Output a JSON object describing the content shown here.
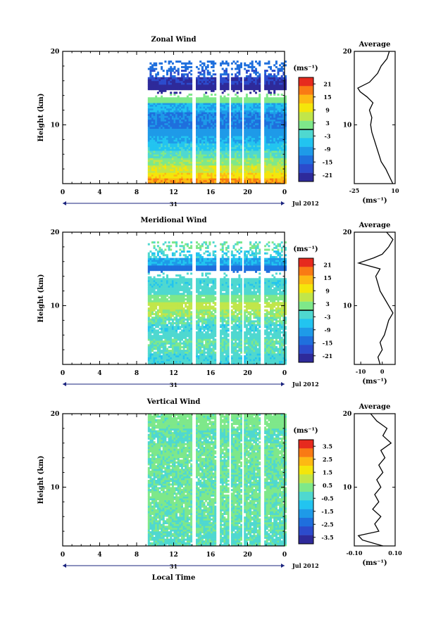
{
  "chart_data": [
    {
      "type": "heatmap",
      "title": "Zonal Wind",
      "ylabel": "Height (km)",
      "xlabel": "",
      "x_ticks": [
        "0",
        "4",
        "8",
        "12",
        "16",
        "20",
        "0"
      ],
      "y_ticks": [
        "20",
        "10"
      ],
      "date_marker": "31",
      "date_label": "Jul 2012",
      "ylim": [
        2,
        20
      ],
      "xlim": [
        0,
        24
      ],
      "colorbar": {
        "unit": "(ms⁻¹)",
        "ticks": [
          "21",
          "15",
          "9",
          "3",
          "-3",
          "-9",
          "-15",
          "-21"
        ],
        "range": [
          -24,
          24
        ],
        "colors": [
          "#e62a1e",
          "#f97a14",
          "#fdb913",
          "#f4e60b",
          "#c1e64a",
          "#7ee88a",
          "#4fd8d0",
          "#22c4f0",
          "#1e9ae8",
          "#1f6fdd",
          "#2c4bcc",
          "#2e2a9a"
        ],
        "contour": "0"
      },
      "time_range_hours": [
        9.2,
        24
      ],
      "layers_km": [
        {
          "z": 18,
          "v": -14
        },
        {
          "z": 17,
          "v": -16
        },
        {
          "z": 16,
          "v": -20
        },
        {
          "z": 15,
          "v": -24
        },
        {
          "z": 13.5,
          "v": 2
        },
        {
          "z": 12.5,
          "v": -8
        },
        {
          "z": 11,
          "v": -12
        },
        {
          "z": 10,
          "v": -13
        },
        {
          "z": 9,
          "v": -10
        },
        {
          "z": 8,
          "v": -8
        },
        {
          "z": 7,
          "v": -5
        },
        {
          "z": 6,
          "v": -1
        },
        {
          "z": 5,
          "v": 3
        },
        {
          "z": 4,
          "v": 7
        },
        {
          "z": 3,
          "v": 11
        },
        {
          "z": 2.3,
          "v": 16
        }
      ],
      "average": {
        "title": "Average",
        "x_ticks": [
          "-25",
          "10"
        ],
        "xlim": [
          -25,
          10
        ],
        "unit": "(ms⁻¹)",
        "profile": [
          {
            "z": 2,
            "v": 8
          },
          {
            "z": 3,
            "v": 5
          },
          {
            "z": 4,
            "v": 2
          },
          {
            "z": 5,
            "v": -2
          },
          {
            "z": 6,
            "v": -4
          },
          {
            "z": 7,
            "v": -6
          },
          {
            "z": 8,
            "v": -8
          },
          {
            "z": 9,
            "v": -10
          },
          {
            "z": 10,
            "v": -11
          },
          {
            "z": 11,
            "v": -10
          },
          {
            "z": 12,
            "v": -12
          },
          {
            "z": 13,
            "v": -9
          },
          {
            "z": 13.8,
            "v": -14
          },
          {
            "z": 14.5,
            "v": -20
          },
          {
            "z": 15,
            "v": -22
          },
          {
            "z": 15.8,
            "v": -12
          },
          {
            "z": 17,
            "v": -5
          },
          {
            "z": 18,
            "v": -2
          },
          {
            "z": 19,
            "v": 3
          },
          {
            "z": 20,
            "v": 5
          }
        ]
      }
    },
    {
      "type": "heatmap",
      "title": "Meridional Wind",
      "ylabel": "Height (km)",
      "xlabel": "",
      "x_ticks": [
        "0",
        "4",
        "8",
        "12",
        "16",
        "20",
        "0"
      ],
      "y_ticks": [
        "20",
        "10"
      ],
      "date_marker": "31",
      "date_label": "Jul 2012",
      "ylim": [
        2,
        20
      ],
      "xlim": [
        0,
        24
      ],
      "colorbar": {
        "unit": "(ms⁻¹)",
        "ticks": [
          "21",
          "15",
          "9",
          "3",
          "-3",
          "-9",
          "-15",
          "-21"
        ],
        "range": [
          -24,
          24
        ],
        "colors": [
          "#e62a1e",
          "#f97a14",
          "#fdb913",
          "#f4e60b",
          "#c1e64a",
          "#7ee88a",
          "#4fd8d0",
          "#22c4f0",
          "#1e9ae8",
          "#1f6fdd",
          "#2c4bcc",
          "#2e2a9a"
        ],
        "contour": "0"
      },
      "time_range_hours": [
        9.2,
        24
      ],
      "layers_km": [
        {
          "z": 18,
          "v": 0
        },
        {
          "z": 17,
          "v": -4
        },
        {
          "z": 16,
          "v": -8
        },
        {
          "z": 15,
          "v": -14
        },
        {
          "z": 14,
          "v": -2
        },
        {
          "z": 13,
          "v": -3
        },
        {
          "z": 12,
          "v": -2
        },
        {
          "z": 11,
          "v": 2
        },
        {
          "z": 10,
          "v": 6
        },
        {
          "z": 9,
          "v": 4
        },
        {
          "z": 8,
          "v": 0
        },
        {
          "z": 7,
          "v": -3
        },
        {
          "z": 6,
          "v": -2
        },
        {
          "z": 5,
          "v": 0
        },
        {
          "z": 4,
          "v": -1
        },
        {
          "z": 3,
          "v": -3
        }
      ],
      "average": {
        "title": "Average",
        "x_ticks": [
          "-10",
          "0"
        ],
        "xlim": [
          -13,
          6
        ],
        "unit": "(ms⁻¹)",
        "profile": [
          {
            "z": 2,
            "v": -1
          },
          {
            "z": 3,
            "v": -2
          },
          {
            "z": 4,
            "v": 0
          },
          {
            "z": 5,
            "v": -1
          },
          {
            "z": 6,
            "v": 1
          },
          {
            "z": 7,
            "v": 2
          },
          {
            "z": 8,
            "v": 3
          },
          {
            "z": 9,
            "v": 5
          },
          {
            "z": 10,
            "v": 3
          },
          {
            "z": 11,
            "v": 1
          },
          {
            "z": 12,
            "v": -1
          },
          {
            "z": 13,
            "v": -2
          },
          {
            "z": 14,
            "v": -3
          },
          {
            "z": 15,
            "v": -1
          },
          {
            "z": 15.8,
            "v": -11
          },
          {
            "z": 16.5,
            "v": -4
          },
          {
            "z": 17,
            "v": 0
          },
          {
            "z": 18,
            "v": 3
          },
          {
            "z": 19,
            "v": 5
          },
          {
            "z": 20,
            "v": 2
          }
        ]
      }
    },
    {
      "type": "heatmap",
      "title": "Vertical Wind",
      "ylabel": "Height (km)",
      "xlabel": "Local Time",
      "x_ticks": [
        "0",
        "4",
        "8",
        "12",
        "16",
        "20",
        "0"
      ],
      "y_ticks": [
        "20",
        "10"
      ],
      "date_marker": "31",
      "date_label": "Jul 2012",
      "ylim": [
        2,
        20
      ],
      "xlim": [
        0,
        24
      ],
      "colorbar": {
        "unit": "(ms⁻¹)",
        "ticks": [
          "3.5",
          "2.5",
          "1.5",
          "0.5",
          "-0.5",
          "-1.5",
          "-2.5",
          "-3.5"
        ],
        "range": [
          -4,
          4
        ],
        "colors": [
          "#e62a1e",
          "#f97a14",
          "#fdb913",
          "#f4e60b",
          "#c1e64a",
          "#7ee88a",
          "#4fd8d0",
          "#22c4f0",
          "#1e9ae8",
          "#1f6fdd",
          "#2c4bcc",
          "#2e2a9a"
        ],
        "contour": ""
      },
      "time_range_hours": [
        9.2,
        24
      ],
      "layers_km": [
        {
          "z": 19,
          "v": 0.3
        },
        {
          "z": 17,
          "v": -0.1
        },
        {
          "z": 15,
          "v": 0.2
        },
        {
          "z": 13,
          "v": 0.1
        },
        {
          "z": 11,
          "v": 0.0
        },
        {
          "z": 9,
          "v": 0.2
        },
        {
          "z": 7,
          "v": 0.1
        },
        {
          "z": 5,
          "v": 0.0
        },
        {
          "z": 3,
          "v": -0.2
        }
      ],
      "average": {
        "title": "Average",
        "x_ticks": [
          "-0.10",
          "0.10"
        ],
        "xlim": [
          -0.1,
          0.1
        ],
        "unit": "(ms⁻¹)",
        "profile": [
          {
            "z": 2,
            "v": 0.04
          },
          {
            "z": 2.8,
            "v": -0.06
          },
          {
            "z": 3.4,
            "v": -0.08
          },
          {
            "z": 4,
            "v": 0.02
          },
          {
            "z": 5,
            "v": 0.0
          },
          {
            "z": 6,
            "v": 0.03
          },
          {
            "z": 7,
            "v": -0.01
          },
          {
            "z": 8,
            "v": 0.02
          },
          {
            "z": 9,
            "v": 0.0
          },
          {
            "z": 10,
            "v": 0.03
          },
          {
            "z": 11,
            "v": 0.01
          },
          {
            "z": 12,
            "v": 0.04
          },
          {
            "z": 13,
            "v": 0.02
          },
          {
            "z": 14,
            "v": 0.05
          },
          {
            "z": 15,
            "v": 0.03
          },
          {
            "z": 16,
            "v": 0.08
          },
          {
            "z": 17,
            "v": 0.04
          },
          {
            "z": 18,
            "v": 0.06
          },
          {
            "z": 19,
            "v": 0.01
          },
          {
            "z": 20,
            "v": -0.02
          }
        ]
      }
    }
  ]
}
